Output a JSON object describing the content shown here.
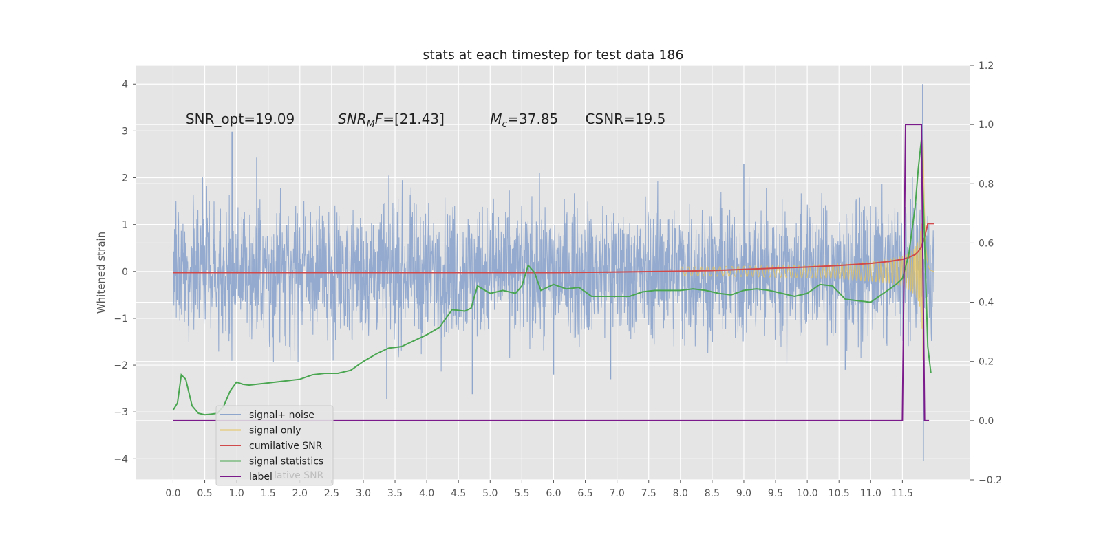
{
  "chart_data": {
    "type": "line",
    "title": "stats at each timestep for test data 186",
    "ylabel": "Whitened strain",
    "ylabel_right": "",
    "xlim": [
      -0.58,
      12.57
    ],
    "ylim": [
      -4.45,
      4.4
    ],
    "ylim_right": [
      -0.2,
      1.2
    ],
    "x_ticks": [
      0.0,
      0.5,
      1.0,
      1.5,
      2.0,
      2.5,
      3.0,
      3.5,
      4.0,
      4.5,
      5.0,
      5.5,
      6.0,
      6.5,
      7.0,
      7.5,
      8.0,
      8.5,
      9.0,
      9.5,
      10.0,
      10.5,
      11.0,
      11.5
    ],
    "x_tick_labels": [
      "0.0",
      "0.5",
      "1.0",
      "1.5",
      "2.0",
      "2.5",
      "3.0",
      "3.5",
      "4.0",
      "4.5",
      "5.0",
      "5.5",
      "6.0",
      "6.5",
      "7.0",
      "7.5",
      "8.0",
      "8.5",
      "9.0",
      "9.5",
      "10.0",
      "10.5",
      "11.0",
      "11.5"
    ],
    "y_ticks": [
      -4,
      -3,
      -2,
      -1,
      0,
      1,
      2,
      3,
      4
    ],
    "y_tick_labels": [
      "−4",
      "−3",
      "−2",
      "−1",
      "0",
      "1",
      "2",
      "3",
      "4"
    ],
    "y_right_ticks": [
      -0.2,
      0.0,
      0.2,
      0.4,
      0.6,
      0.8,
      1.0,
      1.2
    ],
    "y_right_tick_labels": [
      "−0.2",
      "0.0",
      "0.2",
      "0.4",
      "0.6",
      "0.8",
      "1.0",
      "1.2"
    ],
    "grid": true,
    "legend_position": "lower-left",
    "annotations": [
      {
        "id": "snr-opt",
        "text": "SNR_opt=19.09",
        "at": [
          0.2,
          3.15
        ]
      },
      {
        "id": "snr-mf",
        "text": "SNR_MF=[21.43]",
        "at": [
          2.6,
          3.15
        ]
      },
      {
        "id": "mc",
        "text": "M_c=37.85",
        "at": [
          5.0,
          3.15
        ]
      },
      {
        "id": "csnr",
        "text": "CSNR=19.5",
        "at": [
          6.5,
          3.15
        ]
      }
    ],
    "legend": [
      {
        "name": "signal+ noise",
        "color": "#8fa6cc"
      },
      {
        "name": "signal only",
        "color": "#e8c45a"
      },
      {
        "name": "cumilative SNR",
        "color": "#d0494b"
      },
      {
        "name": "signal statistics",
        "color": "#4aa651"
      },
      {
        "name": "label",
        "color": "#7b1a8a"
      }
    ],
    "legend_ghost_text": "lative SNR",
    "series": [
      {
        "name": "signal+ noise",
        "axis": "left",
        "style": "noise",
        "x_range": [
          0.0,
          12.0
        ],
        "approx_envelope": 1.3,
        "spikes": [
          [
            0.93,
            2.98
          ],
          [
            1.32,
            2.43
          ],
          [
            3.37,
            -2.73
          ],
          [
            4.72,
            -2.62
          ],
          [
            11.82,
            4.0
          ],
          [
            11.83,
            -4.05
          ],
          [
            6.0,
            -2.2
          ],
          [
            6.9,
            -2.3
          ],
          [
            9.0,
            2.3
          ],
          [
            10.6,
            -2.1
          ]
        ]
      },
      {
        "name": "signal only",
        "axis": "left",
        "style": "chirp",
        "x_range": [
          8.0,
          12.0
        ],
        "peak_time": 11.83,
        "peak_amplitude": 3.0
      },
      {
        "name": "cumilative SNR",
        "axis": "right",
        "x": [
          0.0,
          5.0,
          6.0,
          7.0,
          8.0,
          8.5,
          9.0,
          9.5,
          10.0,
          10.5,
          11.0,
          11.3,
          11.5,
          11.6,
          11.7,
          11.75,
          11.8,
          11.85,
          11.9,
          12.0
        ],
        "y": [
          0.5,
          0.5,
          0.5,
          0.502,
          0.505,
          0.507,
          0.511,
          0.515,
          0.519,
          0.524,
          0.531,
          0.538,
          0.545,
          0.551,
          0.561,
          0.571,
          0.588,
          0.62,
          0.665,
          0.665
        ]
      },
      {
        "name": "signal statistics",
        "axis": "right",
        "x": [
          0.0,
          0.07,
          0.13,
          0.2,
          0.3,
          0.4,
          0.5,
          0.6,
          0.7,
          0.8,
          0.9,
          1.0,
          1.1,
          1.2,
          1.4,
          1.6,
          1.8,
          2.0,
          2.2,
          2.4,
          2.6,
          2.8,
          3.0,
          3.2,
          3.4,
          3.6,
          3.8,
          4.0,
          4.2,
          4.4,
          4.6,
          4.7,
          4.8,
          5.0,
          5.2,
          5.4,
          5.5,
          5.6,
          5.7,
          5.8,
          6.0,
          6.2,
          6.4,
          6.6,
          6.8,
          7.0,
          7.2,
          7.4,
          7.6,
          7.8,
          8.0,
          8.2,
          8.4,
          8.6,
          8.8,
          9.0,
          9.2,
          9.4,
          9.6,
          9.8,
          10.0,
          10.2,
          10.4,
          10.6,
          10.8,
          11.0,
          11.2,
          11.4,
          11.5,
          11.6,
          11.7,
          11.75,
          11.8,
          11.85,
          11.9,
          11.95
        ],
        "y": [
          0.035,
          0.06,
          0.155,
          0.14,
          0.05,
          0.025,
          0.02,
          0.022,
          0.025,
          0.05,
          0.1,
          0.13,
          0.123,
          0.12,
          0.125,
          0.13,
          0.135,
          0.14,
          0.155,
          0.16,
          0.16,
          0.17,
          0.2,
          0.225,
          0.245,
          0.25,
          0.27,
          0.29,
          0.315,
          0.375,
          0.37,
          0.38,
          0.455,
          0.43,
          0.44,
          0.43,
          0.455,
          0.525,
          0.5,
          0.44,
          0.46,
          0.445,
          0.45,
          0.42,
          0.42,
          0.42,
          0.42,
          0.435,
          0.44,
          0.44,
          0.44,
          0.445,
          0.44,
          0.43,
          0.425,
          0.44,
          0.445,
          0.44,
          0.43,
          0.42,
          0.43,
          0.46,
          0.455,
          0.41,
          0.405,
          0.4,
          0.43,
          0.46,
          0.48,
          0.56,
          0.72,
          0.85,
          0.95,
          0.6,
          0.25,
          0.16
        ]
      },
      {
        "name": "label",
        "axis": "right",
        "x": [
          0.0,
          11.5,
          11.55,
          11.8,
          11.85,
          11.92
        ],
        "y": [
          0.0,
          0.0,
          1.0,
          1.0,
          0.0,
          0.0
        ]
      }
    ]
  }
}
